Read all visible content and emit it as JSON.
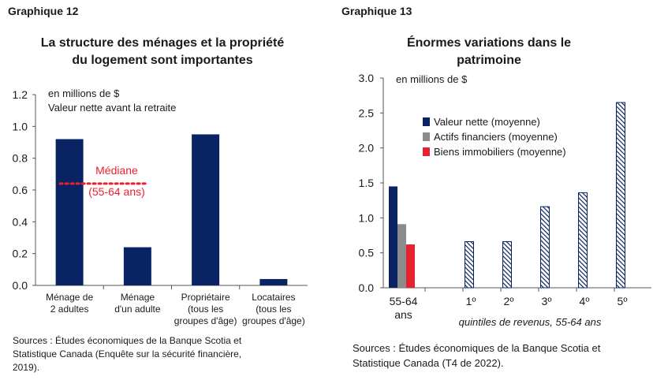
{
  "left": {
    "graph_label": "Graphique 12",
    "title_lines": [
      "La structure des ménages et la propriété",
      "du logement sont importantes"
    ],
    "note_lines": [
      "en millions de $",
      "Valeur nette avant la retraite"
    ],
    "sources_lines": [
      "Sources : Études économiques de la Banque Scotia et",
      "Statistique Canada (Enquête sur la sécurité financière,",
      "2019)."
    ]
  },
  "right": {
    "graph_label": "Graphique 13",
    "title_lines": [
      "Énormes variations dans le",
      "patrimoine"
    ],
    "note": "en millions de $",
    "sources_lines": [
      "Sources : Études économiques de la Banque Scotia et",
      "Statistique Canada (T4 de 2022)."
    ]
  },
  "chart_data": [
    {
      "type": "bar",
      "categories": [
        [
          "Ménage de",
          "2 adultes"
        ],
        [
          "Ménage",
          "d'un adulte"
        ],
        [
          "Propriétaire",
          "(tous les",
          "groupes d'âge)"
        ],
        [
          "Locataires",
          "(tous les",
          "groupes d'âge)"
        ]
      ],
      "values": [
        0.92,
        0.24,
        0.95,
        0.04
      ],
      "ylim": [
        0,
        1.2
      ],
      "yticks": [
        "0.0",
        "0.2",
        "0.4",
        "0.6",
        "0.8",
        "1.0",
        "1.2"
      ],
      "bar_color": "#0a2463",
      "median": {
        "value": 0.64,
        "label_lines": [
          "Médiane",
          "(55-64 ans)"
        ],
        "color": "#e8212e"
      }
    },
    {
      "type": "bar",
      "ylim": [
        0,
        3.0
      ],
      "yticks": [
        "0.0",
        "0.5",
        "1.0",
        "1.5",
        "2.0",
        "2.5",
        "3.0"
      ],
      "age_group": {
        "label_lines": [
          "55-64",
          "ans"
        ],
        "series": [
          {
            "name": "Valeur nette (moyenne)",
            "value": 1.45,
            "color": "#0a2463"
          },
          {
            "name": "Actifs financiers (moyenne)",
            "value": 0.91,
            "color": "#8c8c8c"
          },
          {
            "name": "Biens immobiliers (moyenne)",
            "value": 0.62,
            "color": "#e8212e"
          }
        ]
      },
      "quintiles": {
        "categories": [
          "1º",
          "2º",
          "3º",
          "4º",
          "5º"
        ],
        "values": [
          0.66,
          0.66,
          1.16,
          1.36,
          2.65
        ],
        "pattern": "hatched navy",
        "axis_label": "quintiles de revenus, 55-64 ans"
      },
      "legend_position": "top-center"
    }
  ]
}
